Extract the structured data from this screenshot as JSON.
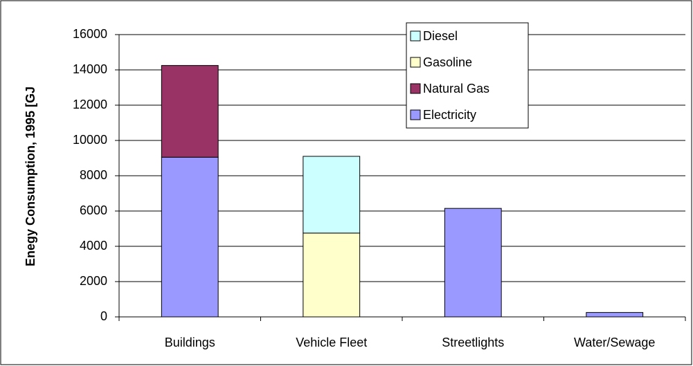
{
  "chart_data": {
    "type": "stacked-bar",
    "y_label": "Enegy Consumption, 1995  [GJ",
    "categories": [
      "Buildings",
      "Vehicle Fleet",
      "Streetlights",
      "Water/Sewage"
    ],
    "series": [
      {
        "name": "Electricity",
        "color": "#9999ff",
        "values": [
          9050,
          0,
          6150,
          250
        ]
      },
      {
        "name": "Natural Gas",
        "color": "#993366",
        "values": [
          5200,
          0,
          0,
          0
        ]
      },
      {
        "name": "Gasoline",
        "color": "#ffffcc",
        "values": [
          0,
          4750,
          0,
          0
        ]
      },
      {
        "name": "Diesel",
        "color": "#ccffff",
        "values": [
          0,
          4350,
          0,
          0
        ]
      }
    ],
    "ylim": [
      0,
      16000
    ],
    "yticks": [
      0,
      2000,
      4000,
      6000,
      8000,
      10000,
      12000,
      14000,
      16000
    ],
    "grid": true
  }
}
